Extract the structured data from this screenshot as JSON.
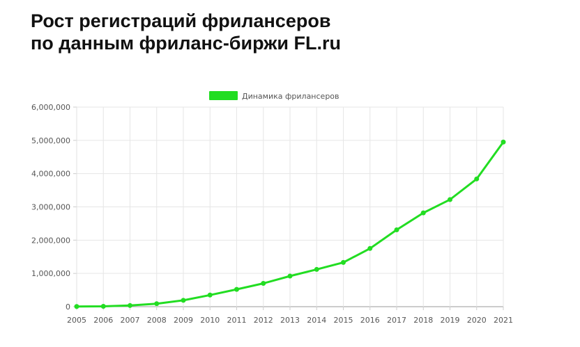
{
  "title_lines": [
    "Рост регистраций фрилансеров",
    "по данным фриланс-биржи FL.ru"
  ],
  "chart_data": {
    "type": "line",
    "title": "Рост регистраций фрилансеров по данным фриланс-биржи FL.ru",
    "xlabel": "",
    "ylabel": "",
    "x": [
      "2005",
      "2006",
      "2007",
      "2008",
      "2009",
      "2010",
      "2011",
      "2012",
      "2013",
      "2014",
      "2015",
      "2016",
      "2017",
      "2018",
      "2019",
      "2020",
      "2021"
    ],
    "series": [
      {
        "name": "Динамика фрилансеров",
        "color": "#22dd22",
        "values": [
          5000,
          10000,
          35000,
          90000,
          190000,
          350000,
          520000,
          700000,
          920000,
          1120000,
          1330000,
          1750000,
          2310000,
          2820000,
          3220000,
          3840000,
          4950000
        ]
      }
    ],
    "ylim": [
      0,
      6000000
    ],
    "yticks": [
      0,
      1000000,
      2000000,
      3000000,
      4000000,
      5000000,
      6000000
    ],
    "ytick_labels": [
      "0",
      "1,000,000",
      "2,000,000",
      "3,000,000",
      "4,000,000",
      "5,000,000",
      "6,000,000"
    ],
    "grid": true,
    "legend": "top-center"
  }
}
